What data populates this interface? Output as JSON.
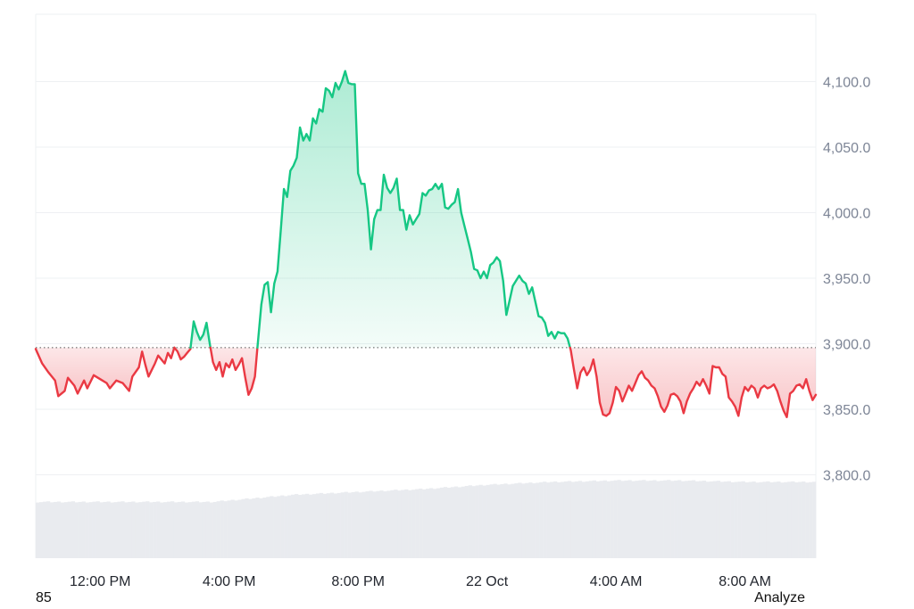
{
  "footer": {
    "left_text": "85",
    "analyze_label": "Analyze"
  },
  "colors": {
    "up": "#16c784",
    "down": "#ea3943",
    "grid": "#eef0f3",
    "volume": "#e9ebef",
    "axis_text": "#7d8596"
  },
  "chart_data": {
    "type": "line",
    "baseline": 3897,
    "ylim": [
      3750,
      4150
    ],
    "yticks": [
      3800,
      3850,
      3900,
      3950,
      4000,
      4050,
      4100
    ],
    "ytick_labels": [
      "3,800.0",
      "3,850.0",
      "3,900.0",
      "3,950.0",
      "4,000.0",
      "4,050.0",
      "4,100.0"
    ],
    "xlim": [
      0,
      24.2
    ],
    "xticks": [
      {
        "x": 2.0,
        "label": "12:00 PM"
      },
      {
        "x": 6.0,
        "label": "4:00 PM"
      },
      {
        "x": 10.0,
        "label": "8:00 PM"
      },
      {
        "x": 14.0,
        "label": "22 Oct"
      },
      {
        "x": 18.0,
        "label": "4:00 AM"
      },
      {
        "x": 22.0,
        "label": "8:00 AM"
      }
    ],
    "series": [
      {
        "values": [
          [
            0.0,
            3896
          ],
          [
            0.2,
            3885
          ],
          [
            0.4,
            3878
          ],
          [
            0.6,
            3872
          ],
          [
            0.7,
            3860
          ],
          [
            0.9,
            3864
          ],
          [
            1.0,
            3874
          ],
          [
            1.2,
            3868
          ],
          [
            1.3,
            3862
          ],
          [
            1.5,
            3872
          ],
          [
            1.6,
            3866
          ],
          [
            1.8,
            3876
          ],
          [
            2.0,
            3873
          ],
          [
            2.2,
            3870
          ],
          [
            2.3,
            3866
          ],
          [
            2.5,
            3872
          ],
          [
            2.7,
            3870
          ],
          [
            2.9,
            3864
          ],
          [
            3.0,
            3875
          ],
          [
            3.2,
            3882
          ],
          [
            3.3,
            3894
          ],
          [
            3.4,
            3884
          ],
          [
            3.5,
            3875
          ],
          [
            3.7,
            3885
          ],
          [
            3.8,
            3891
          ],
          [
            4.0,
            3885
          ],
          [
            4.1,
            3893
          ],
          [
            4.2,
            3889
          ],
          [
            4.3,
            3897
          ],
          [
            4.4,
            3894
          ],
          [
            4.5,
            3888
          ],
          [
            4.6,
            3890
          ],
          [
            4.7,
            3893
          ],
          [
            4.8,
            3896
          ],
          [
            4.9,
            3917
          ],
          [
            5.0,
            3909
          ],
          [
            5.1,
            3903
          ],
          [
            5.2,
            3907
          ],
          [
            5.3,
            3916
          ],
          [
            5.4,
            3900
          ],
          [
            5.5,
            3886
          ],
          [
            5.6,
            3880
          ],
          [
            5.7,
            3886
          ],
          [
            5.8,
            3875
          ],
          [
            5.9,
            3885
          ],
          [
            6.0,
            3882
          ],
          [
            6.1,
            3888
          ],
          [
            6.2,
            3880
          ],
          [
            6.3,
            3884
          ],
          [
            6.4,
            3889
          ],
          [
            6.5,
            3874
          ],
          [
            6.6,
            3861
          ],
          [
            6.7,
            3866
          ],
          [
            6.8,
            3875
          ],
          [
            6.9,
            3903
          ],
          [
            7.0,
            3930
          ],
          [
            7.1,
            3945
          ],
          [
            7.2,
            3947
          ],
          [
            7.3,
            3924
          ],
          [
            7.4,
            3946
          ],
          [
            7.5,
            3955
          ],
          [
            7.6,
            3986
          ],
          [
            7.7,
            4018
          ],
          [
            7.8,
            4012
          ],
          [
            7.9,
            4032
          ],
          [
            8.0,
            4036
          ],
          [
            8.1,
            4042
          ],
          [
            8.2,
            4065
          ],
          [
            8.3,
            4055
          ],
          [
            8.4,
            4060
          ],
          [
            8.5,
            4055
          ],
          [
            8.6,
            4072
          ],
          [
            8.7,
            4068
          ],
          [
            8.8,
            4079
          ],
          [
            8.9,
            4077
          ],
          [
            9.0,
            4095
          ],
          [
            9.1,
            4093
          ],
          [
            9.2,
            4088
          ],
          [
            9.3,
            4099
          ],
          [
            9.4,
            4094
          ],
          [
            9.5,
            4100
          ],
          [
            9.6,
            4108
          ],
          [
            9.7,
            4099
          ],
          [
            9.8,
            4098
          ],
          [
            9.9,
            4098
          ],
          [
            10.0,
            4030
          ],
          [
            10.1,
            4022
          ],
          [
            10.2,
            4022
          ],
          [
            10.3,
            4002
          ],
          [
            10.4,
            3972
          ],
          [
            10.5,
            3995
          ],
          [
            10.6,
            4002
          ],
          [
            10.7,
            4002
          ],
          [
            10.8,
            4029
          ],
          [
            10.9,
            4019
          ],
          [
            11.0,
            4015
          ],
          [
            11.1,
            4019
          ],
          [
            11.2,
            4026
          ],
          [
            11.3,
            4002
          ],
          [
            11.4,
            4002
          ],
          [
            11.5,
            3987
          ],
          [
            11.6,
            3998
          ],
          [
            11.7,
            3991
          ],
          [
            11.8,
            3995
          ],
          [
            11.9,
            3999
          ],
          [
            12.0,
            4015
          ],
          [
            12.1,
            4013
          ],
          [
            12.2,
            4017
          ],
          [
            12.3,
            4018
          ],
          [
            12.4,
            4022
          ],
          [
            12.5,
            4018
          ],
          [
            12.6,
            4022
          ],
          [
            12.7,
            4004
          ],
          [
            12.8,
            4003
          ],
          [
            12.9,
            4006
          ],
          [
            13.0,
            4008
          ],
          [
            13.1,
            4018
          ],
          [
            13.2,
            4000
          ],
          [
            13.3,
            3990
          ],
          [
            13.4,
            3980
          ],
          [
            13.5,
            3970
          ],
          [
            13.6,
            3957
          ],
          [
            13.7,
            3956
          ],
          [
            13.8,
            3950
          ],
          [
            13.9,
            3955
          ],
          [
            14.0,
            3950
          ],
          [
            14.1,
            3960
          ],
          [
            14.2,
            3962
          ],
          [
            14.3,
            3966
          ],
          [
            14.4,
            3963
          ],
          [
            14.5,
            3948
          ],
          [
            14.6,
            3922
          ],
          [
            14.7,
            3933
          ],
          [
            14.8,
            3944
          ],
          [
            14.9,
            3948
          ],
          [
            15.0,
            3952
          ],
          [
            15.1,
            3948
          ],
          [
            15.2,
            3946
          ],
          [
            15.3,
            3938
          ],
          [
            15.4,
            3943
          ],
          [
            15.5,
            3932
          ],
          [
            15.6,
            3921
          ],
          [
            15.7,
            3920
          ],
          [
            15.8,
            3916
          ],
          [
            15.9,
            3906
          ],
          [
            16.0,
            3909
          ],
          [
            16.1,
            3904
          ],
          [
            16.2,
            3909
          ],
          [
            16.3,
            3908
          ],
          [
            16.4,
            3908
          ],
          [
            16.5,
            3904
          ],
          [
            16.6,
            3895
          ],
          [
            16.7,
            3880
          ],
          [
            16.8,
            3866
          ],
          [
            16.9,
            3878
          ],
          [
            17.0,
            3882
          ],
          [
            17.1,
            3876
          ],
          [
            17.2,
            3880
          ],
          [
            17.3,
            3888
          ],
          [
            17.4,
            3875
          ],
          [
            17.5,
            3855
          ],
          [
            17.6,
            3846
          ],
          [
            17.7,
            3845
          ],
          [
            17.8,
            3847
          ],
          [
            17.9,
            3855
          ],
          [
            18.0,
            3867
          ],
          [
            18.1,
            3864
          ],
          [
            18.2,
            3856
          ],
          [
            18.3,
            3862
          ],
          [
            18.4,
            3868
          ],
          [
            18.5,
            3864
          ],
          [
            18.6,
            3870
          ],
          [
            18.7,
            3876
          ],
          [
            18.8,
            3879
          ],
          [
            18.9,
            3874
          ],
          [
            19.0,
            3872
          ],
          [
            19.1,
            3868
          ],
          [
            19.2,
            3866
          ],
          [
            19.3,
            3860
          ],
          [
            19.4,
            3852
          ],
          [
            19.5,
            3848
          ],
          [
            19.6,
            3853
          ],
          [
            19.7,
            3861
          ],
          [
            19.8,
            3862
          ],
          [
            19.9,
            3860
          ],
          [
            20.0,
            3856
          ],
          [
            20.1,
            3847
          ],
          [
            20.2,
            3856
          ],
          [
            20.3,
            3862
          ],
          [
            20.4,
            3866
          ],
          [
            20.5,
            3871
          ],
          [
            20.6,
            3868
          ],
          [
            20.7,
            3873
          ],
          [
            20.8,
            3868
          ],
          [
            20.9,
            3862
          ],
          [
            21.0,
            3883
          ],
          [
            21.1,
            3882
          ],
          [
            21.2,
            3882
          ],
          [
            21.3,
            3877
          ],
          [
            21.4,
            3875
          ],
          [
            21.5,
            3859
          ],
          [
            21.6,
            3856
          ],
          [
            21.7,
            3852
          ],
          [
            21.8,
            3845
          ],
          [
            21.9,
            3859
          ],
          [
            22.0,
            3867
          ],
          [
            22.1,
            3864
          ],
          [
            22.2,
            3868
          ],
          [
            22.3,
            3866
          ],
          [
            22.4,
            3859
          ],
          [
            22.5,
            3866
          ],
          [
            22.6,
            3868
          ],
          [
            22.7,
            3866
          ],
          [
            22.8,
            3867
          ],
          [
            22.9,
            3869
          ],
          [
            23.0,
            3864
          ],
          [
            23.1,
            3856
          ],
          [
            23.2,
            3849
          ],
          [
            23.3,
            3844
          ],
          [
            23.4,
            3862
          ],
          [
            23.5,
            3864
          ],
          [
            23.6,
            3868
          ],
          [
            23.7,
            3869
          ],
          [
            23.8,
            3866
          ],
          [
            23.9,
            3873
          ],
          [
            24.0,
            3864
          ],
          [
            24.1,
            3857
          ],
          [
            24.2,
            3861
          ]
        ]
      }
    ],
    "volume": {
      "values": [
        [
          0.0,
          0.39
        ],
        [
          2.0,
          0.39
        ],
        [
          4.0,
          0.39
        ],
        [
          5.5,
          0.39
        ],
        [
          6.5,
          0.41
        ],
        [
          8.0,
          0.44
        ],
        [
          10.0,
          0.46
        ],
        [
          12.0,
          0.48
        ],
        [
          14.0,
          0.51
        ],
        [
          16.0,
          0.53
        ],
        [
          18.0,
          0.54
        ],
        [
          20.0,
          0.54
        ],
        [
          22.0,
          0.53
        ],
        [
          24.2,
          0.53
        ]
      ]
    }
  }
}
